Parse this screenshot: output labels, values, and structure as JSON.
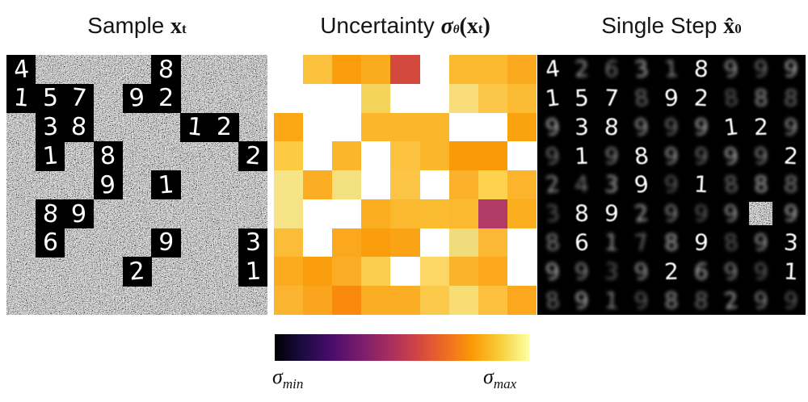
{
  "titles": {
    "sample": {
      "prefix": "Sample ",
      "x": "x",
      "sup": "t"
    },
    "uncertainty": {
      "prefix": "Uncertainty ",
      "sigma": "σ",
      "sigma_sub": "θ",
      "open": "(",
      "x": "x",
      "sup": "t",
      "close": ")"
    },
    "single_step": {
      "prefix": "Single Step ",
      "x": "x̂",
      "sup": "0"
    }
  },
  "colorbar": {
    "sigma": "σ",
    "min_sub": "min",
    "max_sub": "max"
  },
  "chart_data": {
    "type": "heatmap",
    "title": "Uncertainty σ_θ(x^t)",
    "rows": 9,
    "cols": 9,
    "cell_colors": [
      [
        "#ffffff",
        "#fbc13c",
        "#fa9e0d",
        "#fbac1e",
        "#d4493e",
        "#ffffff",
        "#fbb92f",
        "#fbb92f",
        "#faa81e"
      ],
      [
        "#ffffff",
        "#ffffff",
        "#ffffff",
        "#f5d45c",
        "#ffffff",
        "#ffffff",
        "#f8dd7a",
        "#fbc748",
        "#fbbb35"
      ],
      [
        "#fba716",
        "#ffffff",
        "#ffffff",
        "#fbb62b",
        "#fbb62b",
        "#fbb62b",
        "#ffffff",
        "#ffffff",
        "#faa30f"
      ],
      [
        "#fccb43",
        "#ffffff",
        "#fbb62b",
        "#ffffff",
        "#fcc240",
        "#fbb62b",
        "#fa9a06",
        "#fa9a06",
        "#ffffff"
      ],
      [
        "#f6e487",
        "#fbae24",
        "#f3e180",
        "#ffffff",
        "#fcc545",
        "#ffffff",
        "#fbb12b",
        "#fcd24e",
        "#fbb42c"
      ],
      [
        "#f5e385",
        "#ffffff",
        "#ffffff",
        "#fbad1f",
        "#fbb92f",
        "#fbbc32",
        "#fbb92f",
        "#b23a66",
        "#fbae1e"
      ],
      [
        "#fbbd38",
        "#ffffff",
        "#fba81c",
        "#fa9e0d",
        "#faa315",
        "#ffffff",
        "#f0dc7d",
        "#fbb835",
        "#ffffff"
      ],
      [
        "#fbab1d",
        "#fa9e0d",
        "#fbac26",
        "#fcce4e",
        "#ffffff",
        "#fcd766",
        "#fbb32b",
        "#fba81c",
        "#ffffff"
      ],
      [
        "#fbb430",
        "#fba41d",
        "#f98a0d",
        "#fbad24",
        "#fbad24",
        "#fcca4a",
        "#f8dc74",
        "#fcc23f",
        "#fba81e"
      ]
    ],
    "colorbar": {
      "label_min": "σ_min",
      "label_max": "σ_max",
      "colormap_stops": [
        "#000004",
        "#1b0c41",
        "#4a0c6b",
        "#781c6d",
        "#a52c60",
        "#cf4446",
        "#ed6925",
        "#fb9a06",
        "#f7d03c",
        "#fcffa4"
      ]
    }
  },
  "sample_panel": {
    "rows": 9,
    "cols": 9,
    "background": "salt-and-pepper-noise",
    "revealed_digits": [
      [
        "4",
        "",
        "",
        "",
        "",
        "8",
        "",
        "",
        ""
      ],
      [
        "1",
        "5",
        "7",
        "",
        "9",
        "2",
        "",
        "",
        ""
      ],
      [
        "",
        "3",
        "8",
        "",
        "",
        "",
        "1",
        "2",
        ""
      ],
      [
        "",
        "1",
        "",
        "8",
        "",
        "",
        "",
        "",
        "2"
      ],
      [
        "",
        "",
        "",
        "9",
        "",
        "1",
        "",
        "",
        ""
      ],
      [
        "",
        "8",
        "9",
        "",
        "",
        "",
        "",
        "",
        ""
      ],
      [
        "",
        "6",
        "",
        "",
        "",
        "9",
        "",
        "",
        "3"
      ],
      [
        "",
        "",
        "",
        "",
        "2",
        "",
        "",
        "",
        "1"
      ],
      [
        "",
        "",
        "",
        "",
        "",
        "",
        "",
        "",
        ""
      ]
    ]
  },
  "single_step_panel": {
    "rows": 9,
    "cols": 9,
    "noise_cell": {
      "row": 6,
      "col": 8
    },
    "digits": [
      [
        "4",
        "2",
        "6",
        "3",
        "1",
        "8",
        "9",
        "9",
        "9"
      ],
      [
        "1",
        "5",
        "7",
        "8",
        "9",
        "2",
        "8",
        "8",
        "8"
      ],
      [
        "9",
        "3",
        "8",
        "9",
        "9",
        "9",
        "1",
        "2",
        "9"
      ],
      [
        "9",
        "1",
        "9",
        "8",
        "9",
        "9",
        "9",
        "9",
        "2"
      ],
      [
        "2",
        "4",
        "3",
        "9",
        "9",
        "1",
        "8",
        "8",
        "8"
      ],
      [
        "3",
        "8",
        "9",
        "2",
        "9",
        "9",
        "9",
        "",
        "9"
      ],
      [
        "8",
        "6",
        "1",
        "7",
        "8",
        "9",
        "8",
        "9",
        "3"
      ],
      [
        "9",
        "9",
        "3",
        "9",
        "2",
        "6",
        "9",
        "9",
        "1"
      ],
      [
        "8",
        "9",
        "1",
        "9",
        "8",
        "8",
        "2",
        "9",
        "9"
      ]
    ]
  }
}
